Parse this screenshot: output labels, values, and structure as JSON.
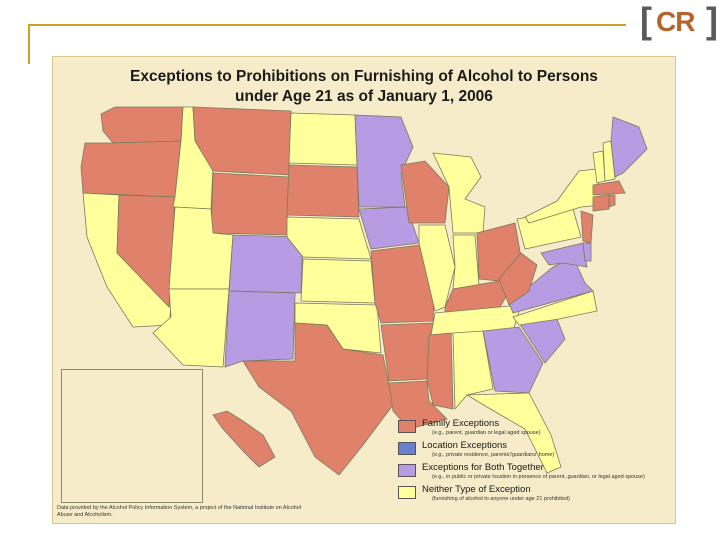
{
  "slide": {
    "logo_letters": "CR",
    "logo_left_bracket": "[",
    "logo_right_bracket": "]"
  },
  "map": {
    "title_line1": "Exceptions to Prohibitions on Furnishing of Alcohol to Persons",
    "title_line2": "under Age 21 as of January 1, 2006",
    "colors": {
      "family": "#e0826b",
      "location": "#6a7fcf",
      "both": "#b79ce3",
      "neither": "#ffff9b",
      "water": "#f7ecc9",
      "border": "#7a7a5a"
    },
    "legend": [
      {
        "label": "Family Exceptions",
        "sub": "(e.g., parent, guardian or legal aged spouse)",
        "color_key": "family"
      },
      {
        "label": "Location Exceptions",
        "sub": "(e.g., private residence, parents'/guardians' home)",
        "color_key": "location"
      },
      {
        "label": "Exceptions for Both Together",
        "sub": "(e.g., in public or private location in presence of parent, guardian, or legal aged spouse)",
        "color_key": "both"
      },
      {
        "label": "Neither Type of Exception",
        "sub": "(furnishing of alcohol to anyone under age 21 prohibited)",
        "color_key": "neither"
      }
    ],
    "source": "Data provided by the Alcohol Policy Information System, a project of the National Institute on Alcohol Abuse and Alcoholism."
  }
}
